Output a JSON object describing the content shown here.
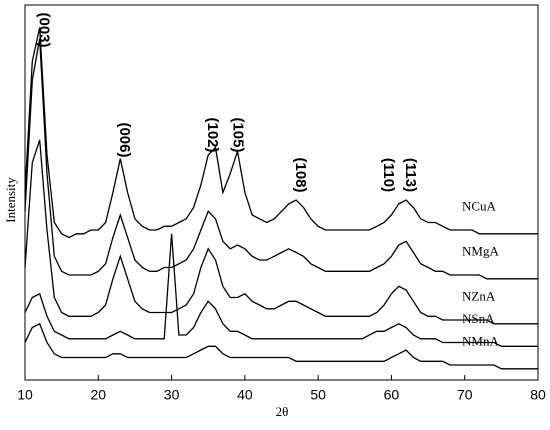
{
  "chart_data": {
    "type": "line",
    "xlabel": "2θ",
    "ylabel": "Intensity",
    "x": [
      10,
      11,
      12,
      13,
      14,
      15,
      16,
      17,
      18,
      19,
      20,
      21,
      22,
      23,
      24,
      25,
      26,
      27,
      28,
      29,
      30,
      31,
      32,
      33,
      34,
      35,
      36,
      37,
      38,
      39,
      40,
      41,
      42,
      43,
      44,
      45,
      46,
      47,
      48,
      49,
      50,
      51,
      52,
      53,
      54,
      55,
      56,
      57,
      58,
      59,
      60,
      61,
      62,
      63,
      64,
      65,
      66,
      67,
      68,
      69,
      70,
      71,
      72,
      73,
      74,
      75,
      76,
      77,
      78,
      79,
      80
    ],
    "series": [
      {
        "name": "NCuA",
        "color": "#000000",
        "values": [
          50,
          85,
          94,
          60,
          42,
          39,
          38,
          39,
          39,
          40,
          40,
          42,
          50,
          59,
          50,
          43,
          41,
          40,
          40,
          41,
          41,
          42,
          43,
          46,
          52,
          60,
          62,
          50,
          55,
          61,
          50,
          44,
          43,
          42,
          43,
          45,
          47,
          48,
          46,
          43,
          41,
          40,
          40,
          40,
          40,
          40,
          40,
          40,
          41,
          42,
          44,
          47,
          48,
          46,
          43,
          42,
          42,
          41,
          40,
          40,
          40,
          40,
          39,
          39,
          39,
          39,
          39,
          39,
          39,
          39,
          39
        ]
      },
      {
        "name": "NMgA",
        "color": "#000000",
        "values": [
          45,
          80,
          91,
          55,
          33,
          29,
          28,
          28,
          28,
          28,
          29,
          31,
          38,
          44,
          38,
          32,
          30,
          29,
          29,
          30,
          30,
          31,
          32,
          35,
          40,
          45,
          43,
          37,
          35,
          36,
          35,
          33,
          32,
          32,
          33,
          34,
          35,
          34,
          33,
          31,
          30,
          29,
          29,
          29,
          29,
          29,
          29,
          29,
          30,
          31,
          33,
          36,
          37,
          34,
          31,
          30,
          29,
          29,
          28,
          28,
          28,
          28,
          28,
          27,
          27,
          27,
          27,
          27,
          27,
          27,
          27
        ]
      },
      {
        "name": "NZnA",
        "color": "#000000",
        "values": [
          30,
          58,
          64,
          40,
          22,
          18,
          17,
          17,
          17,
          17,
          18,
          20,
          27,
          33,
          27,
          21,
          19,
          18,
          18,
          18,
          18,
          19,
          20,
          23,
          30,
          35,
          32,
          25,
          22,
          22,
          23,
          21,
          20,
          19,
          19,
          20,
          21,
          21,
          20,
          19,
          18,
          17,
          17,
          17,
          17,
          17,
          17,
          17,
          18,
          20,
          23,
          25,
          24,
          21,
          18,
          17,
          17,
          16,
          16,
          16,
          16,
          16,
          16,
          16,
          15,
          15,
          15,
          15,
          15,
          15,
          15
        ]
      },
      {
        "name": "NSnA",
        "color": "#000000",
        "values": [
          18,
          22,
          23,
          17,
          13,
          12,
          11,
          11,
          11,
          11,
          11,
          11,
          12,
          13,
          12,
          11,
          11,
          11,
          11,
          11,
          39,
          12,
          12,
          14,
          18,
          21,
          19,
          15,
          13,
          13,
          12,
          11,
          11,
          11,
          11,
          11,
          11,
          11,
          11,
          11,
          11,
          11,
          11,
          11,
          11,
          11,
          11,
          12,
          13,
          13,
          14,
          15,
          14,
          12,
          11,
          11,
          11,
          10,
          10,
          10,
          10,
          10,
          10,
          10,
          10,
          9,
          9,
          9,
          9,
          9,
          9
        ]
      },
      {
        "name": "NMnA",
        "color": "#000000",
        "values": [
          10,
          14,
          15,
          10,
          7,
          6,
          6,
          6,
          6,
          6,
          6,
          6,
          7,
          7,
          6,
          6,
          6,
          6,
          6,
          6,
          6,
          6,
          6,
          7,
          8,
          9,
          9,
          7,
          6,
          6,
          6,
          6,
          6,
          6,
          6,
          6,
          6,
          5,
          5,
          5,
          5,
          5,
          5,
          5,
          5,
          5,
          5,
          5,
          5,
          5,
          6,
          7,
          8,
          6,
          5,
          5,
          5,
          5,
          4,
          4,
          4,
          4,
          4,
          4,
          4,
          3,
          3,
          3,
          3,
          3,
          3
        ]
      }
    ],
    "annotations": [
      {
        "text": "(003)",
        "x": 12.5
      },
      {
        "text": "(006)",
        "x": 23.5
      },
      {
        "text": "(102)",
        "x": 35.5
      },
      {
        "text": "(105)",
        "x": 39
      },
      {
        "text": "(108)",
        "x": 47.5
      },
      {
        "text": "(110)",
        "x": 59.5
      },
      {
        "text": "(113)",
        "x": 62.5
      }
    ],
    "xlim": [
      10,
      80
    ],
    "xticks": [
      10,
      20,
      30,
      40,
      50,
      60,
      70,
      80
    ],
    "ylim": [
      0,
      100
    ],
    "grid": false
  }
}
